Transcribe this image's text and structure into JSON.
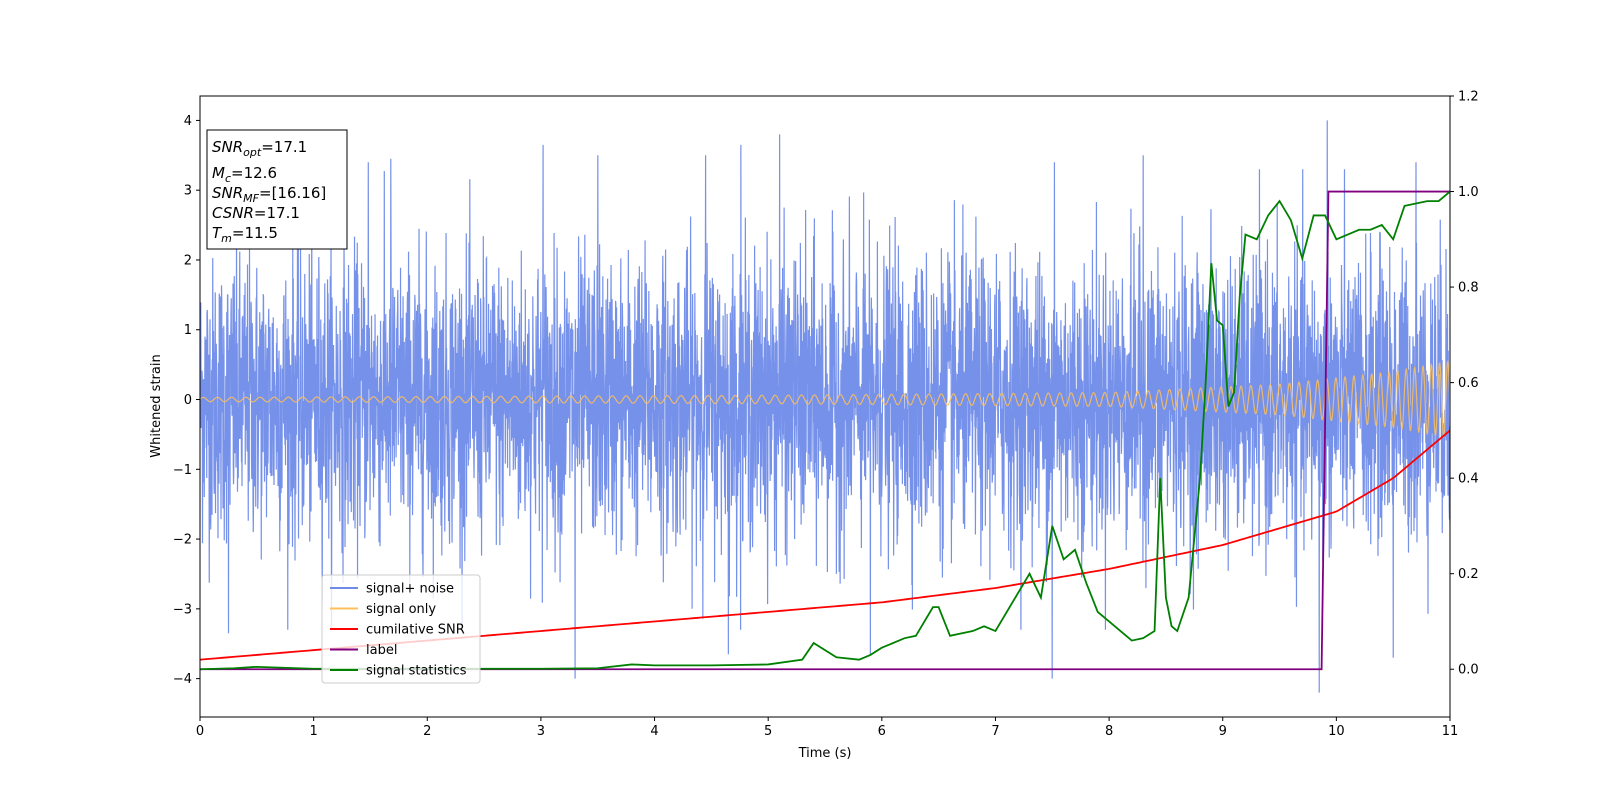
{
  "chart_data": {
    "type": "line",
    "xlabel": "Time (s)",
    "ylabel": "Whitened strain",
    "xlim": [
      0,
      11
    ],
    "ylim": [
      -4.55,
      4.35
    ],
    "y2lim": [
      -0.1,
      1.2
    ],
    "xticks": [
      "0",
      "1",
      "2",
      "3",
      "4",
      "5",
      "6",
      "7",
      "8",
      "9",
      "10",
      "11"
    ],
    "yticks": [
      "−4",
      "−3",
      "−2",
      "−1",
      "0",
      "1",
      "2",
      "3",
      "4"
    ],
    "y2ticks": [
      "0.0",
      "0.2",
      "0.4",
      "0.6",
      "0.8",
      "1.0",
      "1.2"
    ],
    "grid": false,
    "legend_position": "lower-left",
    "annotation": {
      "lines": [
        {
          "main": "SNR",
          "sub": "opt",
          "value": "=17.1"
        },
        {
          "main": "M",
          "sub": "c",
          "value": "=12.6"
        },
        {
          "main": "SNR",
          "sub": "MF",
          "value": "=[16.16]"
        },
        {
          "main": "CSNR",
          "sub": "",
          "value": "=17.1"
        },
        {
          "main": "T",
          "sub": "m",
          "value": "=11.5"
        }
      ]
    },
    "series": [
      {
        "name": "signal+ noise",
        "axis": "left",
        "color": "#6f8be8",
        "description_noise_std": 1.0,
        "spikes": [
          {
            "x": 0.25,
            "y": -3.35
          },
          {
            "x": 1.48,
            "y": 3.4
          },
          {
            "x": 1.68,
            "y": 3.45
          },
          {
            "x": 3.02,
            "y": 3.65
          },
          {
            "x": 3.3,
            "y": -4.0
          },
          {
            "x": 3.5,
            "y": 3.5
          },
          {
            "x": 4.45,
            "y": 3.5
          },
          {
            "x": 4.65,
            "y": -3.65
          },
          {
            "x": 4.76,
            "y": 3.65
          },
          {
            "x": 5.1,
            "y": 3.8
          },
          {
            "x": 5.9,
            "y": -3.65
          },
          {
            "x": 7.5,
            "y": -4.0
          },
          {
            "x": 7.52,
            "y": 3.4
          },
          {
            "x": 8.3,
            "y": 3.5
          },
          {
            "x": 9.85,
            "y": -4.2
          },
          {
            "x": 9.92,
            "y": 4.0
          },
          {
            "x": 10.5,
            "y": -3.7
          },
          {
            "x": 10.7,
            "y": 3.4
          }
        ]
      },
      {
        "name": "signal only",
        "axis": "left",
        "color": "#ffbf5a",
        "amplitude_points": [
          [
            0,
            0.03
          ],
          [
            5,
            0.06
          ],
          [
            8,
            0.1
          ],
          [
            9.5,
            0.22
          ],
          [
            10.5,
            0.4
          ],
          [
            11,
            0.55
          ]
        ]
      },
      {
        "name": "cumilative SNR",
        "axis": "right",
        "color": "#ff0000",
        "x": [
          0,
          1,
          2,
          3,
          4,
          5,
          6,
          7,
          8,
          9,
          10,
          10.5,
          11
        ],
        "values": [
          0.02,
          0.04,
          0.06,
          0.08,
          0.1,
          0.12,
          0.14,
          0.17,
          0.21,
          0.26,
          0.33,
          0.4,
          0.5
        ]
      },
      {
        "name": "label",
        "axis": "right",
        "color": "#800080",
        "x": [
          0,
          9.87,
          9.93,
          11
        ],
        "values": [
          0,
          0,
          1,
          1
        ]
      },
      {
        "name": "signal statistics",
        "axis": "right",
        "color": "#008000",
        "x": [
          0,
          0.3,
          0.5,
          1,
          2,
          3,
          3.5,
          3.8,
          4,
          4.5,
          5,
          5.3,
          5.4,
          5.6,
          5.8,
          5.9,
          6,
          6.2,
          6.3,
          6.45,
          6.5,
          6.6,
          6.8,
          6.9,
          7,
          7.2,
          7.3,
          7.4,
          7.5,
          7.6,
          7.7,
          7.8,
          7.9,
          8,
          8.2,
          8.3,
          8.4,
          8.45,
          8.5,
          8.55,
          8.6,
          8.7,
          8.8,
          8.85,
          8.9,
          8.95,
          9,
          9.05,
          9.1,
          9.15,
          9.2,
          9.3,
          9.4,
          9.5,
          9.6,
          9.7,
          9.8,
          9.9,
          10,
          10.1,
          10.2,
          10.3,
          10.4,
          10.5,
          10.6,
          10.8,
          10.9,
          11
        ],
        "values": [
          0,
          0.002,
          0.005,
          0.001,
          0.001,
          0.001,
          0.002,
          0.01,
          0.008,
          0.008,
          0.01,
          0.02,
          0.055,
          0.025,
          0.02,
          0.03,
          0.045,
          0.065,
          0.07,
          0.13,
          0.13,
          0.07,
          0.08,
          0.09,
          0.08,
          0.16,
          0.2,
          0.15,
          0.3,
          0.23,
          0.25,
          0.18,
          0.12,
          0.1,
          0.06,
          0.065,
          0.08,
          0.4,
          0.15,
          0.09,
          0.08,
          0.15,
          0.4,
          0.6,
          0.85,
          0.73,
          0.72,
          0.55,
          0.58,
          0.78,
          0.91,
          0.9,
          0.95,
          0.98,
          0.94,
          0.86,
          0.95,
          0.95,
          0.9,
          0.91,
          0.92,
          0.92,
          0.93,
          0.9,
          0.97,
          0.98,
          0.98,
          1.0
        ]
      }
    ]
  }
}
